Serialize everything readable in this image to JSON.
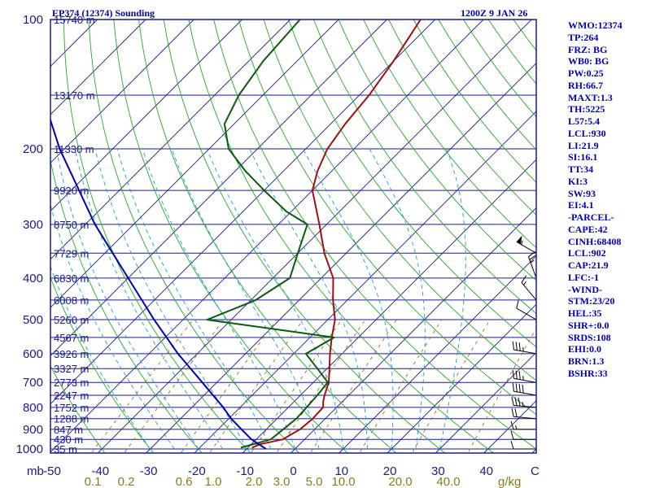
{
  "chart_data": {
    "type": "line",
    "title": "EP374 (12374) Sounding",
    "valid_time": "1200Z  9 JAN 26",
    "pressure_axis": {
      "unit": "mb",
      "ticks": [
        100,
        200,
        300,
        400,
        500,
        600,
        700,
        800,
        900,
        1000
      ],
      "range": [
        100,
        1000
      ]
    },
    "height_levels": [
      {
        "p": 100,
        "label": "15740 m"
      },
      {
        "p": 150,
        "label": "13170 m"
      },
      {
        "p": 200,
        "label": "11330 m"
      },
      {
        "p": 250,
        "label": "9920 m"
      },
      {
        "p": 300,
        "label": "8750 m"
      },
      {
        "p": 350,
        "label": "7729 m"
      },
      {
        "p": 400,
        "label": "6830 m"
      },
      {
        "p": 450,
        "label": "6008 m"
      },
      {
        "p": 500,
        "label": "5260 m"
      },
      {
        "p": 550,
        "label": "4567 m"
      },
      {
        "p": 600,
        "label": "3926 m"
      },
      {
        "p": 650,
        "label": "3327 m"
      },
      {
        "p": 700,
        "label": "2773 m"
      },
      {
        "p": 750,
        "label": "2247 m"
      },
      {
        "p": 800,
        "label": "1752 m"
      },
      {
        "p": 850,
        "label": "1288 m"
      },
      {
        "p": 900,
        "label": "847 m"
      },
      {
        "p": 950,
        "label": "430 m"
      },
      {
        "p": 1000,
        "label": "35 m"
      }
    ],
    "temperature_axis": {
      "unit": "C",
      "ticks": [
        -50,
        -40,
        -30,
        -20,
        -10,
        0,
        10,
        20,
        30,
        40
      ],
      "range": [
        -50,
        50
      ]
    },
    "mixing_ratio_axis": {
      "unit": "g/kg",
      "labels": [
        "0.1",
        "0.2",
        "0.6",
        "1.0",
        "2.0",
        "3.0",
        "5.0",
        "10.0",
        "20.0",
        "40.0"
      ]
    },
    "series": [
      {
        "name": "Temperature",
        "color": "#a01010",
        "points": [
          {
            "p": 993,
            "t": -9.2
          },
          {
            "p": 975,
            "t": -8.2
          },
          {
            "p": 950,
            "t": -4.5
          },
          {
            "p": 925,
            "t": -3.8
          },
          {
            "p": 900,
            "t": -3.0
          },
          {
            "p": 850,
            "t": -2.6
          },
          {
            "p": 800,
            "t": -2.8
          },
          {
            "p": 775,
            "t": -4.0
          },
          {
            "p": 750,
            "t": -5.0
          },
          {
            "p": 700,
            "t": -6.8
          },
          {
            "p": 650,
            "t": -9.5
          },
          {
            "p": 600,
            "t": -12.5
          },
          {
            "p": 550,
            "t": -15.5
          },
          {
            "p": 500,
            "t": -18.5
          },
          {
            "p": 450,
            "t": -23.0
          },
          {
            "p": 400,
            "t": -27.5
          },
          {
            "p": 350,
            "t": -34.5
          },
          {
            "p": 300,
            "t": -41.5
          },
          {
            "p": 250,
            "t": -50.0
          },
          {
            "p": 225,
            "t": -53.0
          },
          {
            "p": 200,
            "t": -55.5
          },
          {
            "p": 175,
            "t": -57.0
          },
          {
            "p": 150,
            "t": -58.0
          },
          {
            "p": 125,
            "t": -60.0
          },
          {
            "p": 100,
            "t": -63.0
          }
        ]
      },
      {
        "name": "Dewpoint",
        "color": "#0e5a0e",
        "points": [
          {
            "p": 993,
            "t": -11.5
          },
          {
            "p": 950,
            "t": -7.0
          },
          {
            "p": 900,
            "t": -6.5
          },
          {
            "p": 850,
            "t": -6.0
          },
          {
            "p": 800,
            "t": -6.2
          },
          {
            "p": 750,
            "t": -6.5
          },
          {
            "p": 700,
            "t": -7.0
          },
          {
            "p": 650,
            "t": -12.0
          },
          {
            "p": 600,
            "t": -17.5
          },
          {
            "p": 550,
            "t": -15.0
          },
          {
            "p": 500,
            "t": -45.0
          },
          {
            "p": 450,
            "t": -39.0
          },
          {
            "p": 400,
            "t": -36.5
          },
          {
            "p": 350,
            "t": -40.0
          },
          {
            "p": 300,
            "t": -44.0
          },
          {
            "p": 280,
            "t": -51.0
          },
          {
            "p": 250,
            "t": -60.0
          },
          {
            "p": 225,
            "t": -68.0
          },
          {
            "p": 200,
            "t": -76.0
          },
          {
            "p": 175,
            "t": -82.0
          },
          {
            "p": 150,
            "t": -85.0
          },
          {
            "p": 125,
            "t": -87.0
          },
          {
            "p": 100,
            "t": -88.0
          }
        ]
      },
      {
        "name": "Parcel",
        "color": "#0000aa",
        "points": [
          {
            "p": 1000,
            "t": -6.0
          },
          {
            "p": 950,
            "t": -11.0
          },
          {
            "p": 902,
            "t": -15.0
          },
          {
            "p": 850,
            "t": -19.5
          },
          {
            "p": 800,
            "t": -23.5
          },
          {
            "p": 700,
            "t": -33.0
          },
          {
            "p": 600,
            "t": -44.0
          },
          {
            "p": 500,
            "t": -56.0
          },
          {
            "p": 400,
            "t": -70.0
          },
          {
            "p": 300,
            "t": -88.0
          },
          {
            "p": 200,
            "t": -111.0
          },
          {
            "p": 125,
            "t": -135.0
          }
        ]
      }
    ],
    "wind_barbs": [
      {
        "p": 1000,
        "dir": 270,
        "kt": 10
      },
      {
        "p": 950,
        "dir": 270,
        "kt": 10
      },
      {
        "p": 900,
        "dir": 270,
        "kt": 15
      },
      {
        "p": 850,
        "dir": 275,
        "kt": 20
      },
      {
        "p": 800,
        "dir": 275,
        "kt": 35
      },
      {
        "p": 750,
        "dir": 280,
        "kt": 40
      },
      {
        "p": 700,
        "dir": 280,
        "kt": 35
      },
      {
        "p": 600,
        "dir": 280,
        "kt": 35
      },
      {
        "p": 500,
        "dir": 300,
        "kt": 10
      },
      {
        "p": 450,
        "dir": 320,
        "kt": 15
      },
      {
        "p": 400,
        "dir": 340,
        "kt": 25
      },
      {
        "p": 350,
        "dir": 300,
        "kt": 55
      }
    ],
    "xlabel": "",
    "ylabel": "mb"
  },
  "indices": [
    "WMO:12374",
    "TP:264",
    "FRZ: BG",
    "WB0: BG",
    "PW:0.25",
    "RH:66.7",
    "MAXT:1.3",
    "TH:5225",
    "L57:5.4",
    "LCL:930",
    "LI:21.9",
    "SI:16.1",
    "TT:34",
    "KI:3",
    "SW:93",
    "EI:4.1",
    "-PARCEL-",
    "CAPE:42",
    "CINH:68408",
    "LCL:902",
    "CAP:21.9",
    "LFC:-1",
    "-WIND-",
    "STM:23/20",
    "HEL:35",
    "SHR+:0.0",
    "SRDS:108",
    "EHI:0.0",
    "BRN:1.3",
    "BSHR:33"
  ],
  "colors": {
    "isobar": "#1a1a8a",
    "isotherm": "#1a1a8a",
    "dry_adiabat": "#22aa22",
    "moist_adiabat": "#1aa0c8",
    "mixing_ratio": "#8a7a18",
    "title": "#0000b0"
  }
}
